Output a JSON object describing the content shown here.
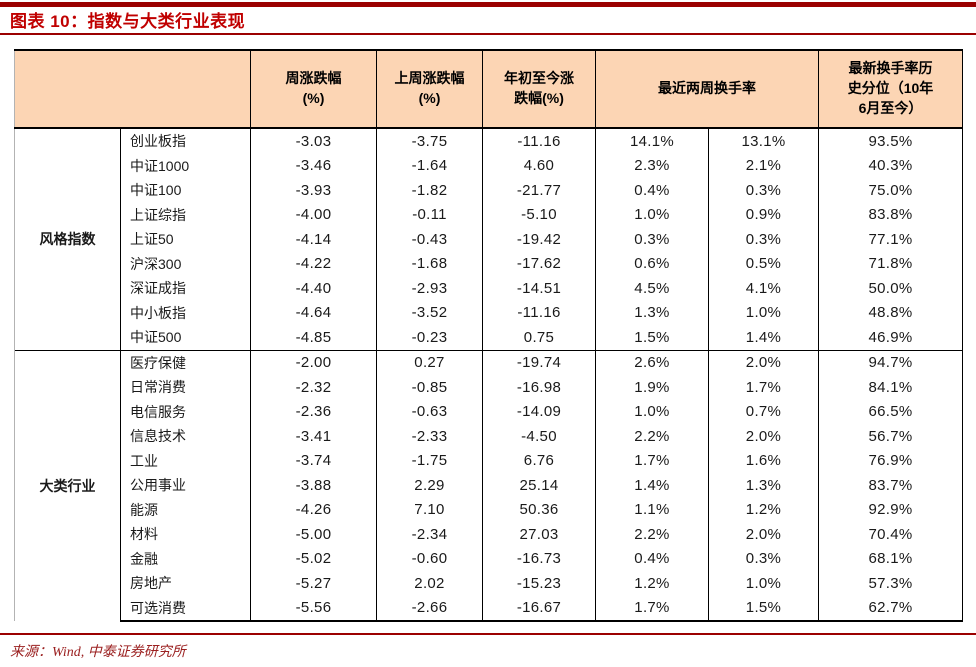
{
  "page": {
    "title": "图表 10：指数与大类行业表现",
    "source": "来源：Wind, 中泰证券研究所"
  },
  "colors": {
    "title_red": "#c00000",
    "rule_red": "#9b0000",
    "header_bg": "#fcd5b4",
    "table_border": "#000000",
    "source_text": "#9b2020"
  },
  "chart_data": {
    "type": "table",
    "title": "图表 10：指数与大类行业表现",
    "source": "来源：Wind, 中泰证券研究所",
    "headers": {
      "blank": "",
      "week_change": "周涨跌幅\n(%)",
      "prev_week_change": "上周涨跌幅\n(%)",
      "ytd_change": "年初至今涨\n跌幅(%)",
      "two_week_turnover": "最近两周换手率",
      "turnover_percentile": "最新换手率历\n史分位（10年\n6月至今）"
    },
    "value_columns": [
      "周涨跌幅(%)",
      "上周涨跌幅(%)",
      "年初至今涨跌幅(%)",
      "最近两周换手率-本周",
      "最近两周换手率-上周",
      "最新换手率历史分位（10年6月至今）"
    ],
    "groups": [
      {
        "label": "风格指数",
        "rows": [
          {
            "name": "创业板指",
            "values": [
              "-3.03",
              "-3.75",
              "-11.16",
              "14.1%",
              "13.1%",
              "93.5%"
            ]
          },
          {
            "name": "中证1000",
            "values": [
              "-3.46",
              "-1.64",
              "4.60",
              "2.3%",
              "2.1%",
              "40.3%"
            ]
          },
          {
            "name": "中证100",
            "values": [
              "-3.93",
              "-1.82",
              "-21.77",
              "0.4%",
              "0.3%",
              "75.0%"
            ]
          },
          {
            "name": "上证综指",
            "values": [
              "-4.00",
              "-0.11",
              "-5.10",
              "1.0%",
              "0.9%",
              "83.8%"
            ]
          },
          {
            "name": "上证50",
            "values": [
              "-4.14",
              "-0.43",
              "-19.42",
              "0.3%",
              "0.3%",
              "77.1%"
            ]
          },
          {
            "name": "沪深300",
            "values": [
              "-4.22",
              "-1.68",
              "-17.62",
              "0.6%",
              "0.5%",
              "71.8%"
            ]
          },
          {
            "name": "深证成指",
            "values": [
              "-4.40",
              "-2.93",
              "-14.51",
              "4.5%",
              "4.1%",
              "50.0%"
            ]
          },
          {
            "name": "中小板指",
            "values": [
              "-4.64",
              "-3.52",
              "-11.16",
              "1.3%",
              "1.0%",
              "48.8%"
            ]
          },
          {
            "name": "中证500",
            "values": [
              "-4.85",
              "-0.23",
              "0.75",
              "1.5%",
              "1.4%",
              "46.9%"
            ]
          }
        ]
      },
      {
        "label": "大类行业",
        "rows": [
          {
            "name": "医疗保健",
            "values": [
              "-2.00",
              "0.27",
              "-19.74",
              "2.6%",
              "2.0%",
              "94.7%"
            ]
          },
          {
            "name": "日常消费",
            "values": [
              "-2.32",
              "-0.85",
              "-16.98",
              "1.9%",
              "1.7%",
              "84.1%"
            ]
          },
          {
            "name": "电信服务",
            "values": [
              "-2.36",
              "-0.63",
              "-14.09",
              "1.0%",
              "0.7%",
              "66.5%"
            ]
          },
          {
            "name": "信息技术",
            "values": [
              "-3.41",
              "-2.33",
              "-4.50",
              "2.2%",
              "2.0%",
              "56.7%"
            ]
          },
          {
            "name": "工业",
            "values": [
              "-3.74",
              "-1.75",
              "6.76",
              "1.7%",
              "1.6%",
              "76.9%"
            ]
          },
          {
            "name": "公用事业",
            "values": [
              "-3.88",
              "2.29",
              "25.14",
              "1.4%",
              "1.3%",
              "83.7%"
            ]
          },
          {
            "name": "能源",
            "values": [
              "-4.26",
              "7.10",
              "50.36",
              "1.1%",
              "1.2%",
              "92.9%"
            ]
          },
          {
            "name": "材料",
            "values": [
              "-5.00",
              "-2.34",
              "27.03",
              "2.2%",
              "2.0%",
              "70.4%"
            ]
          },
          {
            "name": "金融",
            "values": [
              "-5.02",
              "-0.60",
              "-16.73",
              "0.4%",
              "0.3%",
              "68.1%"
            ]
          },
          {
            "name": "房地产",
            "values": [
              "-5.27",
              "2.02",
              "-15.23",
              "1.2%",
              "1.0%",
              "57.3%"
            ]
          },
          {
            "name": "可选消费",
            "values": [
              "-5.56",
              "-2.66",
              "-16.67",
              "1.7%",
              "1.5%",
              "62.7%"
            ]
          }
        ]
      }
    ]
  }
}
